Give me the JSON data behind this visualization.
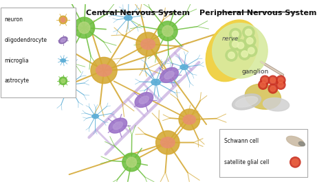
{
  "title_cns": "Central Nervous System",
  "title_pns": "Peripheral Nervous System",
  "bg_color": "#ffffff",
  "legend_labels": [
    "neuron",
    "oligodendrocyte",
    "microglia",
    "astrocyte"
  ],
  "neuron_color": "#d4a832",
  "oligo_color": "#8b6bb1",
  "micro_color": "#5badd6",
  "astro_color": "#6dbf3e",
  "nerve_label": "nerve",
  "ganglion_label": "ganglion",
  "schwann_label": "Schwann cell",
  "satellite_label": "satellite glial cell",
  "figsize": [
    4.74,
    2.71
  ],
  "dpi": 100,
  "rail_color": "#c8aee0",
  "node_color": "#9b72c8",
  "node_inner_color": "#b89ad8",
  "nerve_outer_color": "#f0d040",
  "nerve_inner_color": "#d8eaa0",
  "nerve_bundle_color": "#b8d880",
  "nerve_bundle_inner": "#e8f4b0",
  "ganglion_body_color": "#d4c060",
  "schwann_wrap_color": "#c8b8a0",
  "satellite_color": "#cc3322",
  "red_cell_highlight": "#ee6644",
  "salmon_nucleus": "#e89070"
}
